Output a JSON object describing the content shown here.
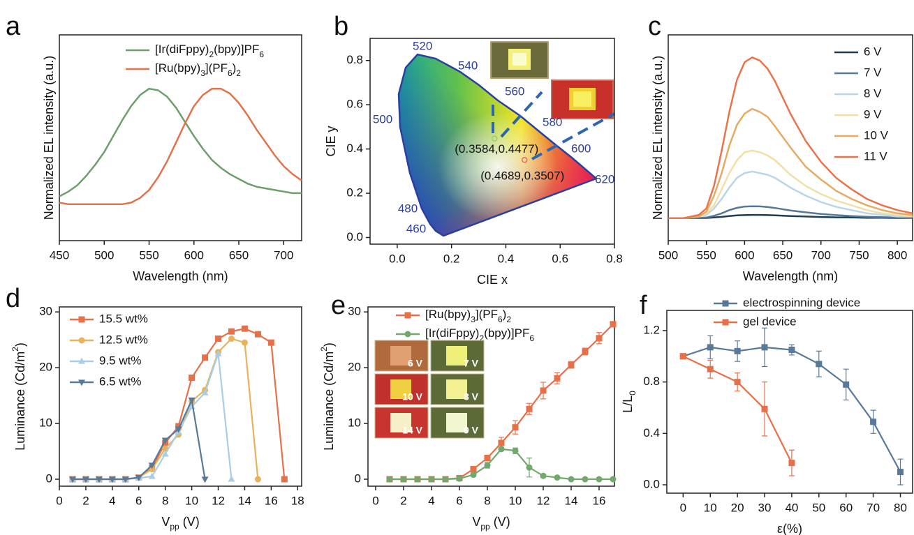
{
  "chart_data": [
    {
      "type": "line",
      "label": "a",
      "xlabel": "Wavelength (nm)",
      "ylabel": "Normalized EL intensity (a.u.)",
      "xlim": [
        450,
        720
      ],
      "ylim": [
        0,
        1.3
      ],
      "xticks": [
        450,
        500,
        550,
        600,
        650,
        700
      ],
      "legend": "upper right",
      "x": [
        450,
        460,
        470,
        480,
        490,
        500,
        510,
        520,
        530,
        540,
        550,
        560,
        570,
        580,
        590,
        600,
        610,
        620,
        630,
        640,
        650,
        660,
        670,
        680,
        690,
        700,
        710,
        720
      ],
      "series": [
        {
          "name": [
            "[Ir(diFppy)",
            "2",
            "(bpy)]PF",
            "6"
          ],
          "color": "#6e9e6a",
          "values": [
            0.28,
            0.31,
            0.35,
            0.41,
            0.48,
            0.56,
            0.66,
            0.76,
            0.85,
            0.92,
            0.96,
            0.95,
            0.91,
            0.84,
            0.75,
            0.66,
            0.58,
            0.51,
            0.46,
            0.42,
            0.39,
            0.36,
            0.34,
            0.33,
            0.32,
            0.31,
            0.3,
            0.3
          ]
        },
        {
          "name": [
            "[Ru(bpy)",
            "3",
            "](PF",
            "6",
            ")",
            "2"
          ],
          "color": "#e0734e",
          "values": [
            0.24,
            0.23,
            0.23,
            0.23,
            0.23,
            0.23,
            0.23,
            0.23,
            0.24,
            0.27,
            0.32,
            0.4,
            0.5,
            0.62,
            0.74,
            0.85,
            0.92,
            0.96,
            0.96,
            0.93,
            0.87,
            0.79,
            0.7,
            0.62,
            0.54,
            0.47,
            0.42,
            0.38
          ]
        }
      ]
    },
    {
      "type": "scatter",
      "label": "b",
      "xlabel": "CIE x",
      "ylabel": "CIE y",
      "xlim": [
        -0.1,
        0.8
      ],
      "ylim": [
        -0.03,
        0.9
      ],
      "xticks": [
        {
          "value": 0,
          "label": "0.0"
        },
        0.2,
        0.4,
        0.6,
        0.8
      ],
      "yticks": [
        {
          "value": 0,
          "label": "0.0"
        },
        0.2,
        0.4,
        0.6,
        0.8
      ],
      "x": [
        0.3584,
        0.4689
      ],
      "values": [
        0.4477,
        0.3507
      ],
      "value_labels": [
        "(0.3584,0.4477)",
        "(0.4689,0.3507)"
      ],
      "colors": [
        "#8fd36e",
        "#e86a6a"
      ],
      "wavelength_labels": [
        520,
        540,
        560,
        580,
        600,
        620,
        500,
        480,
        460
      ]
    },
    {
      "type": "line",
      "label": "c",
      "xlabel": "Wavelength (nm)",
      "ylabel": "Normalized EL intensity (a.u.)",
      "xlim": [
        500,
        820
      ],
      "ylim": [
        -0.14,
        1.14
      ],
      "xticks": [
        500,
        550,
        600,
        650,
        700,
        750,
        800
      ],
      "legend": "upper right",
      "x": [
        500,
        520,
        540,
        550,
        560,
        570,
        580,
        590,
        600,
        610,
        620,
        630,
        640,
        660,
        680,
        700,
        720,
        740,
        760,
        780,
        800,
        820
      ],
      "series": [
        {
          "name": "6 V",
          "color": "#1f3d52",
          "values": [
            0,
            0,
            0,
            0.001,
            0.004,
            0.008,
            0.013,
            0.017,
            0.019,
            0.02,
            0.02,
            0.019,
            0.017,
            0.013,
            0.01,
            0.007,
            0.005,
            0.004,
            0.002,
            0.002,
            0.001,
            0.001
          ]
        },
        {
          "name": "7 V",
          "color": "#56789a",
          "values": [
            0,
            0,
            0,
            0.004,
            0.015,
            0.03,
            0.05,
            0.064,
            0.072,
            0.074,
            0.073,
            0.069,
            0.063,
            0.048,
            0.036,
            0.026,
            0.019,
            0.013,
            0.009,
            0.006,
            0.004,
            0.002
          ]
        },
        {
          "name": "8 V",
          "color": "#b9d6e8",
          "values": [
            0,
            0,
            0.01,
            0.02,
            0.06,
            0.12,
            0.19,
            0.25,
            0.28,
            0.29,
            0.28,
            0.27,
            0.25,
            0.19,
            0.14,
            0.1,
            0.07,
            0.05,
            0.03,
            0.02,
            0.01,
            0.01
          ]
        },
        {
          "name": "9 V",
          "color": "#f2dfa6",
          "values": [
            0,
            0,
            0.01,
            0.03,
            0.08,
            0.18,
            0.28,
            0.36,
            0.41,
            0.42,
            0.41,
            0.39,
            0.36,
            0.27,
            0.2,
            0.15,
            0.11,
            0.08,
            0.05,
            0.03,
            0.02,
            0.01
          ]
        },
        {
          "name": "10 V",
          "color": "#e6aa62",
          "values": [
            0,
            0,
            0.01,
            0.04,
            0.14,
            0.28,
            0.45,
            0.58,
            0.65,
            0.68,
            0.66,
            0.63,
            0.57,
            0.44,
            0.32,
            0.24,
            0.17,
            0.12,
            0.08,
            0.05,
            0.03,
            0.02
          ]
        },
        {
          "name": "11 V",
          "color": "#e9744c",
          "values": [
            0,
            0,
            0.02,
            0.06,
            0.2,
            0.42,
            0.66,
            0.86,
            0.97,
            1.0,
            0.98,
            0.93,
            0.85,
            0.65,
            0.48,
            0.35,
            0.25,
            0.18,
            0.12,
            0.08,
            0.05,
            0.03
          ]
        }
      ]
    },
    {
      "type": "line",
      "label": "d",
      "xlabel": [
        "V",
        "pp",
        " (V)"
      ],
      "ylabel": [
        "Luminance (Cd/m",
        "2",
        ")"
      ],
      "xlim": [
        0,
        18.3
      ],
      "ylim": [
        -1.25,
        30.9
      ],
      "xticks": [
        0,
        2,
        4,
        6,
        8,
        10,
        12,
        14,
        16,
        18
      ],
      "yticks": [
        0,
        10,
        20,
        30
      ],
      "legend": "upper left",
      "series": [
        {
          "name": "15.5 wt%",
          "color": "#e5704a",
          "marker": "square",
          "x": [
            1,
            2,
            3,
            4,
            5,
            6,
            7,
            8,
            9,
            10,
            11,
            12,
            13,
            14,
            15,
            16,
            17
          ],
          "values": [
            0,
            0,
            0,
            0,
            0,
            0.3,
            2,
            6.5,
            9.5,
            18.2,
            21.8,
            25.2,
            26.5,
            27,
            26,
            24.5,
            0
          ]
        },
        {
          "name": "12.5 wt%",
          "color": "#e8b25a",
          "marker": "circle",
          "x": [
            1,
            2,
            3,
            4,
            5,
            6,
            7,
            8,
            9,
            10,
            11,
            12,
            13,
            14,
            15
          ],
          "values": [
            0,
            0,
            0,
            0,
            0,
            0.3,
            1.8,
            5.5,
            8,
            14,
            16,
            22.8,
            25.2,
            24.5,
            0
          ]
        },
        {
          "name": "9.5 wt%",
          "color": "#aacde6",
          "marker": "triangle-up",
          "x": [
            1,
            2,
            3,
            4,
            5,
            6,
            7,
            8,
            9,
            10,
            11,
            12,
            13
          ],
          "values": [
            0,
            0,
            0,
            0,
            0,
            0.2,
            0.5,
            4.5,
            8.5,
            13,
            15.5,
            22.5,
            0
          ]
        },
        {
          "name": "6.5 wt%",
          "color": "#58799a",
          "marker": "triangle-down",
          "x": [
            1,
            2,
            3,
            4,
            5,
            6,
            7,
            8,
            9,
            10,
            11
          ],
          "values": [
            0,
            0,
            0,
            0,
            0,
            0.3,
            2.5,
            7,
            9,
            14.2,
            0
          ]
        }
      ]
    },
    {
      "type": "line",
      "label": "e",
      "xlabel": [
        "V",
        "pp",
        " (V)"
      ],
      "ylabel": [
        "Luminance (Cd/m",
        "2",
        ")"
      ],
      "xlim": [
        -0.55,
        17.1
      ],
      "ylim": [
        -1.25,
        30.9
      ],
      "xticks": [
        0,
        2,
        4,
        6,
        8,
        10,
        12,
        14,
        16
      ],
      "yticks": [
        0,
        10,
        20,
        30
      ],
      "legend": "upper left",
      "insets": [
        "6 V",
        "7 V",
        "10 V",
        "8 V",
        "14 V",
        "9 V"
      ],
      "x": [
        1,
        2,
        3,
        4,
        5,
        6,
        7,
        8,
        9,
        10,
        11,
        12,
        13,
        14,
        15,
        16,
        17
      ],
      "series": [
        {
          "name": [
            "[Ru(bpy)",
            "3",
            "](PF",
            "6",
            ")",
            "2"
          ],
          "color": "#e5704a",
          "marker": "square",
          "values": [
            0,
            0,
            0,
            0,
            0,
            0.2,
            1.8,
            3.8,
            6.5,
            9.3,
            12.6,
            15.9,
            18.1,
            20.5,
            22.9,
            25.3,
            27.8
          ],
          "errors": [
            0,
            0,
            0,
            0,
            0,
            0.2,
            0.5,
            0.5,
            1,
            1.2,
            1,
            1.5,
            1,
            0.6,
            0.6,
            1,
            0.3
          ]
        },
        {
          "name": [
            "[Ir(diFppy)",
            "2",
            "(bpy)]PF",
            "6"
          ],
          "color": "#72a86e",
          "marker": "circle",
          "values": [
            0,
            0,
            0,
            0,
            0,
            0.1,
            0.8,
            2.5,
            5.4,
            5.1,
            2.1,
            0.6,
            0.3,
            0,
            0,
            0,
            0
          ],
          "errors": [
            0,
            0,
            0,
            0,
            0,
            0,
            0.3,
            0.5,
            0.3,
            0.5,
            1.7,
            0.3,
            0.2,
            0,
            0,
            0,
            0
          ]
        }
      ]
    },
    {
      "type": "line",
      "label": "f",
      "xlabel": "ε(%)",
      "ylabel": [
        "L/L",
        "0"
      ],
      "xlim": [
        -6,
        84.5
      ],
      "ylim": [
        -0.065,
        1.357
      ],
      "xticks": [
        0,
        10,
        20,
        30,
        40,
        50,
        60,
        70,
        80
      ],
      "yticks": [
        {
          "value": 0,
          "label": "0.0"
        },
        0.4,
        0.8,
        1.2
      ],
      "legend": "upper right",
      "series": [
        {
          "name": "electrospinning device",
          "color": "#58799a",
          "marker": "square",
          "x": [
            0,
            10,
            20,
            30,
            40,
            50,
            60,
            70,
            80
          ],
          "values": [
            1.0,
            1.07,
            1.04,
            1.07,
            1.05,
            0.94,
            0.78,
            0.49,
            0.1
          ],
          "errors": [
            0,
            0.09,
            0.08,
            0.15,
            0.04,
            0.1,
            0.12,
            0.09,
            0.1
          ]
        },
        {
          "name": "gel device",
          "color": "#e5704a",
          "marker": "square",
          "x": [
            0,
            10,
            20,
            30,
            40
          ],
          "values": [
            1.0,
            0.9,
            0.8,
            0.59,
            0.17
          ],
          "errors": [
            0,
            0.07,
            0.07,
            0.21,
            0.1
          ]
        }
      ]
    }
  ]
}
